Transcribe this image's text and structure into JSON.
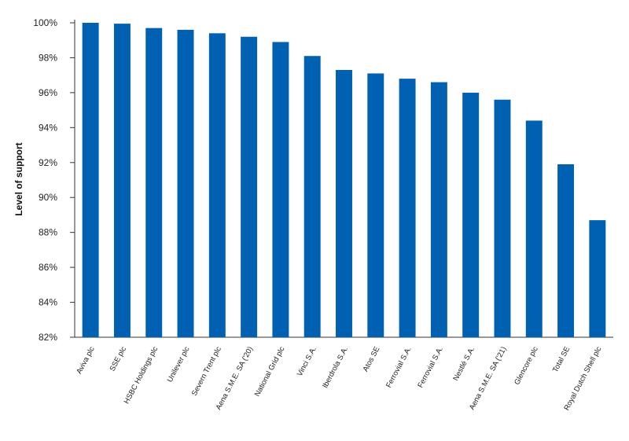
{
  "chart_data": {
    "type": "bar",
    "title": "",
    "xlabel": "",
    "ylabel": "Level of support",
    "ylim": [
      82,
      100
    ],
    "yticks": [
      82,
      84,
      86,
      88,
      90,
      92,
      94,
      96,
      98,
      100
    ],
    "ytick_suffix": "%",
    "grid": false,
    "bar_color": "#0061b2",
    "categories": [
      "Aviva plc",
      "SSE plc",
      "HSBC Holdings plc",
      "Unilever plc",
      "Severn Trent plc",
      "Aena S.M.E. SA ('20)",
      "National Grid plc",
      "Vinci S.A.",
      "Iberdrola S.A.",
      "Atos SE",
      "Ferrovial S.A.",
      "Ferrovial S.A.",
      "Nestlé S.A.",
      "Aena S.M.E. SA ('21)",
      "Glencore plc",
      "Total SE",
      "Royal Dutch Shell plc"
    ],
    "values": [
      100.0,
      99.95,
      99.7,
      99.6,
      99.4,
      99.2,
      98.9,
      98.1,
      97.3,
      97.1,
      96.8,
      96.6,
      96.0,
      95.6,
      94.4,
      91.9,
      88.7
    ]
  }
}
